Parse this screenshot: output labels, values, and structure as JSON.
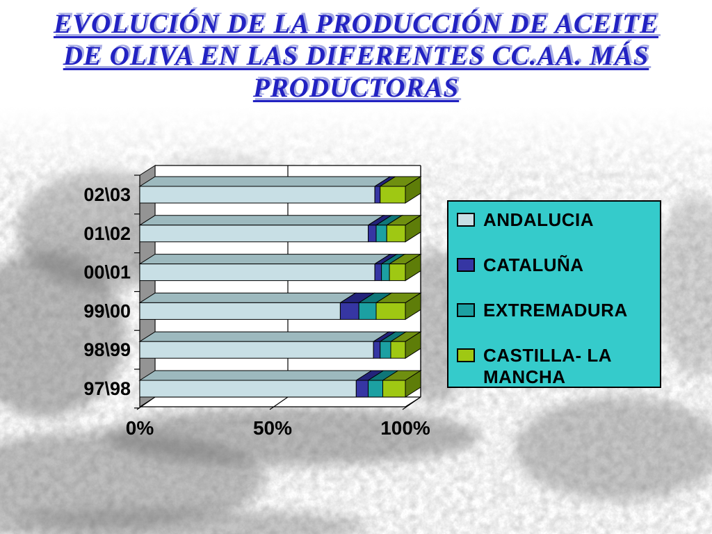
{
  "slide": {
    "title_lines": [
      "EVOLUCIÓN DE LA PRODUCCIÓN DE ACEITE",
      "DE OLIVA EN LAS DIFERENTES CC.AA. MÁS",
      "PRODUCTORAS"
    ],
    "title_color": "#2222C2",
    "title_shadow_color": "#A6ABE4"
  },
  "chart_data": {
    "type": "bar",
    "orientation": "horizontal",
    "stacked_percent": true,
    "style": "3d",
    "categories": [
      "02\\03",
      "01\\02",
      "00\\01",
      "99\\00",
      "98\\99",
      "97\\98"
    ],
    "series": [
      {
        "name": "ANDALUCIA",
        "color": "#C8DFE5",
        "top_color": "#9DB9BE",
        "values": [
          88.5,
          86.0,
          88.5,
          75.5,
          88.0,
          81.5
        ]
      },
      {
        "name": "CATALUÑA",
        "color": "#3636A3",
        "top_color": "#23237A",
        "values": [
          2.0,
          3.0,
          2.5,
          7.0,
          2.5,
          4.5
        ]
      },
      {
        "name": "EXTREMADURA",
        "color": "#1CA0A2",
        "top_color": "#0F7678",
        "values": [
          0.0,
          4.0,
          3.0,
          6.5,
          4.0,
          5.5
        ]
      },
      {
        "name": "CASTILLA- LA MANCHA",
        "color": "#9FC813",
        "top_color": "#6F8F10",
        "values": [
          9.5,
          7.0,
          6.0,
          11.0,
          5.5,
          8.5
        ]
      }
    ],
    "bar_side_color": "#5E7D09",
    "wall_color": "#949494",
    "plot_bg_color": "#FFFFFF",
    "x_ticks": [
      "0%",
      "50%",
      "100%"
    ],
    "xlim": [
      0,
      100
    ],
    "grid": true,
    "legend": {
      "position": "right",
      "bg_color": "#35CBCB",
      "border_color": "#000000"
    }
  }
}
